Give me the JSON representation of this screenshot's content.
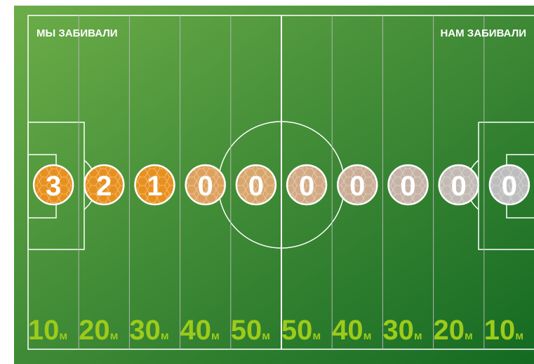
{
  "labels": {
    "left": "МЫ ЗАБИВАЛИ",
    "right": "НАМ ЗАБИВАЛИ"
  },
  "zones": [
    {
      "distance": "10",
      "unit": "м",
      "goals": "3"
    },
    {
      "distance": "20",
      "unit": "м",
      "goals": "2"
    },
    {
      "distance": "30",
      "unit": "м",
      "goals": "1"
    },
    {
      "distance": "40",
      "unit": "м",
      "goals": "0"
    },
    {
      "distance": "50",
      "unit": "м",
      "goals": "0"
    },
    {
      "distance": "50",
      "unit": "м",
      "goals": "0"
    },
    {
      "distance": "40",
      "unit": "м",
      "goals": "0"
    },
    {
      "distance": "30",
      "unit": "м",
      "goals": "0"
    },
    {
      "distance": "20",
      "unit": "м",
      "goals": "0"
    },
    {
      "distance": "10",
      "unit": "м",
      "goals": "0"
    }
  ]
}
